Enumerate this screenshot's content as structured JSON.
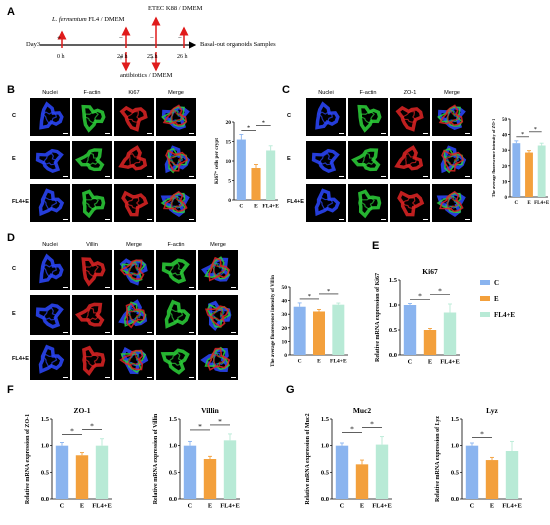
{
  "colors": {
    "C": "#8ab4ef",
    "E": "#f3a03c",
    "FL4E": "#b8ead6",
    "nuclei": "#2c48ff",
    "factin": "#2dd23a",
    "red": "#e02424",
    "arrow": "#e01b1b"
  },
  "panelA": {
    "label": "A",
    "top_labels": [
      {
        "text": "L. fermentum FL4 / DMEM",
        "italic_part": "L. fermentum",
        "plain_part": " FL4 / DMEM"
      },
      {
        "text": "ETEC K88 / DMEM"
      }
    ],
    "day": "Day3",
    "times": [
      "0 h",
      "24 h",
      "25 h",
      "26 h"
    ],
    "bottom_label": "antibiotics / DMEM",
    "end_label": "Basal-out organoids Samples",
    "signs": [
      "+",
      "−",
      "+",
      "−",
      "+",
      "−"
    ]
  },
  "panelB": {
    "label": "B",
    "headers": [
      "Nuclei",
      "F-actin",
      "Ki67",
      "Merge"
    ],
    "rows": [
      "C",
      "E",
      "FL4+E"
    ]
  },
  "panelC": {
    "label": "C",
    "headers": [
      "Nuclei",
      "F-actin",
      "ZO-1",
      "Merge"
    ],
    "rows": [
      "C",
      "E",
      "FL4+E"
    ]
  },
  "panelD": {
    "label": "D",
    "headers": [
      "Nuclei",
      "Villin",
      "Merge",
      "F-actin",
      "Merge"
    ],
    "rows": [
      "C",
      "E",
      "FL4+E"
    ]
  },
  "panelE_label": "E",
  "panelF_label": "F",
  "panelG_label": "G",
  "chart_data": [
    {
      "id": "B",
      "type": "bar",
      "categories": [
        "C",
        "E",
        "FL4+E"
      ],
      "values": [
        15.5,
        8.2,
        12.7
      ],
      "errors": [
        1.3,
        0.9,
        1.2
      ],
      "ylabel": "Ki67⁺ cells per crypt",
      "ylim": [
        0,
        20
      ],
      "yticks": [
        "0",
        "5",
        "10",
        "15",
        "20"
      ],
      "sig": [
        "*",
        "*"
      ]
    },
    {
      "id": "C",
      "type": "bar",
      "categories": [
        "C",
        "E",
        "FL4+E"
      ],
      "values": [
        34.5,
        28.5,
        33.0
      ],
      "errors": [
        1.5,
        1.2,
        1.5
      ],
      "ylabel": "The average fluorescence intensity of ZO-1",
      "ylim": [
        0,
        50
      ],
      "yticks": [
        "0",
        "10",
        "20",
        "30",
        "40",
        "50"
      ],
      "sig": [
        "*",
        "*"
      ]
    },
    {
      "id": "D",
      "type": "bar",
      "categories": [
        "C",
        "E",
        "FL4+E"
      ],
      "values": [
        35.5,
        32.0,
        37.0
      ],
      "errors": [
        2.8,
        1.5,
        1.2
      ],
      "ylabel": "The average fluorescence intensity of Villin",
      "ylim": [
        0,
        50
      ],
      "yticks": [
        "0",
        "10",
        "20",
        "30",
        "40",
        "50"
      ],
      "sig": [
        "*",
        "*"
      ]
    },
    {
      "id": "E",
      "type": "bar",
      "title": "Ki67",
      "categories": [
        "C",
        "E",
        "FL4+E"
      ],
      "values": [
        1.0,
        0.5,
        0.85
      ],
      "errors": [
        0.03,
        0.03,
        0.17
      ],
      "ylabel": "Relative mRNA expression of Ki67",
      "ylim": [
        0,
        1.5
      ],
      "yticks": [
        "0.0",
        "0.5",
        "1.0",
        "1.5"
      ],
      "sig": [
        "*",
        "*"
      ],
      "legend": [
        "C",
        "E",
        "FL4+E"
      ]
    },
    {
      "id": "F1",
      "type": "bar",
      "title": "ZO-1",
      "categories": [
        "C",
        "E",
        "FL4+E"
      ],
      "values": [
        1.0,
        0.82,
        1.0
      ],
      "errors": [
        0.06,
        0.05,
        0.13
      ],
      "ylabel": "Relative mRNA expression of ZO-1",
      "ylim": [
        0,
        1.5
      ],
      "yticks": [
        "0.0",
        "0.5",
        "1.0",
        "1.5"
      ],
      "sig": [
        "*",
        "*"
      ]
    },
    {
      "id": "F2",
      "type": "bar",
      "title": "Villin",
      "categories": [
        "C",
        "E",
        "FL4+E"
      ],
      "values": [
        1.0,
        0.75,
        1.1
      ],
      "errors": [
        0.08,
        0.05,
        0.12
      ],
      "ylabel": "Relative mRNA expression of Villin",
      "ylim": [
        0,
        1.5
      ],
      "yticks": [
        "0.0",
        "0.5",
        "1.0",
        "1.5"
      ],
      "sig": [
        "*",
        "*"
      ]
    },
    {
      "id": "G1",
      "type": "bar",
      "title": "Muc2",
      "categories": [
        "C",
        "E",
        "FL4+E"
      ],
      "values": [
        1.0,
        0.65,
        1.02
      ],
      "errors": [
        0.05,
        0.08,
        0.15
      ],
      "ylabel": "Relative mRNA expression of Muc2",
      "ylim": [
        0,
        1.5
      ],
      "yticks": [
        "0.0",
        "0.5",
        "1.0",
        "1.5"
      ],
      "sig": [
        "*",
        "*"
      ]
    },
    {
      "id": "G2",
      "type": "bar",
      "title": "Lyz",
      "categories": [
        "C",
        "E",
        "FL4+E"
      ],
      "values": [
        1.0,
        0.73,
        0.9
      ],
      "errors": [
        0.05,
        0.05,
        0.18
      ],
      "ylabel": "Relative mRNA expression of Lyz",
      "ylim": [
        0,
        1.5
      ],
      "yticks": [
        "0.0",
        "0.5",
        "1.0",
        "1.5"
      ],
      "sig": [
        "*"
      ]
    }
  ]
}
